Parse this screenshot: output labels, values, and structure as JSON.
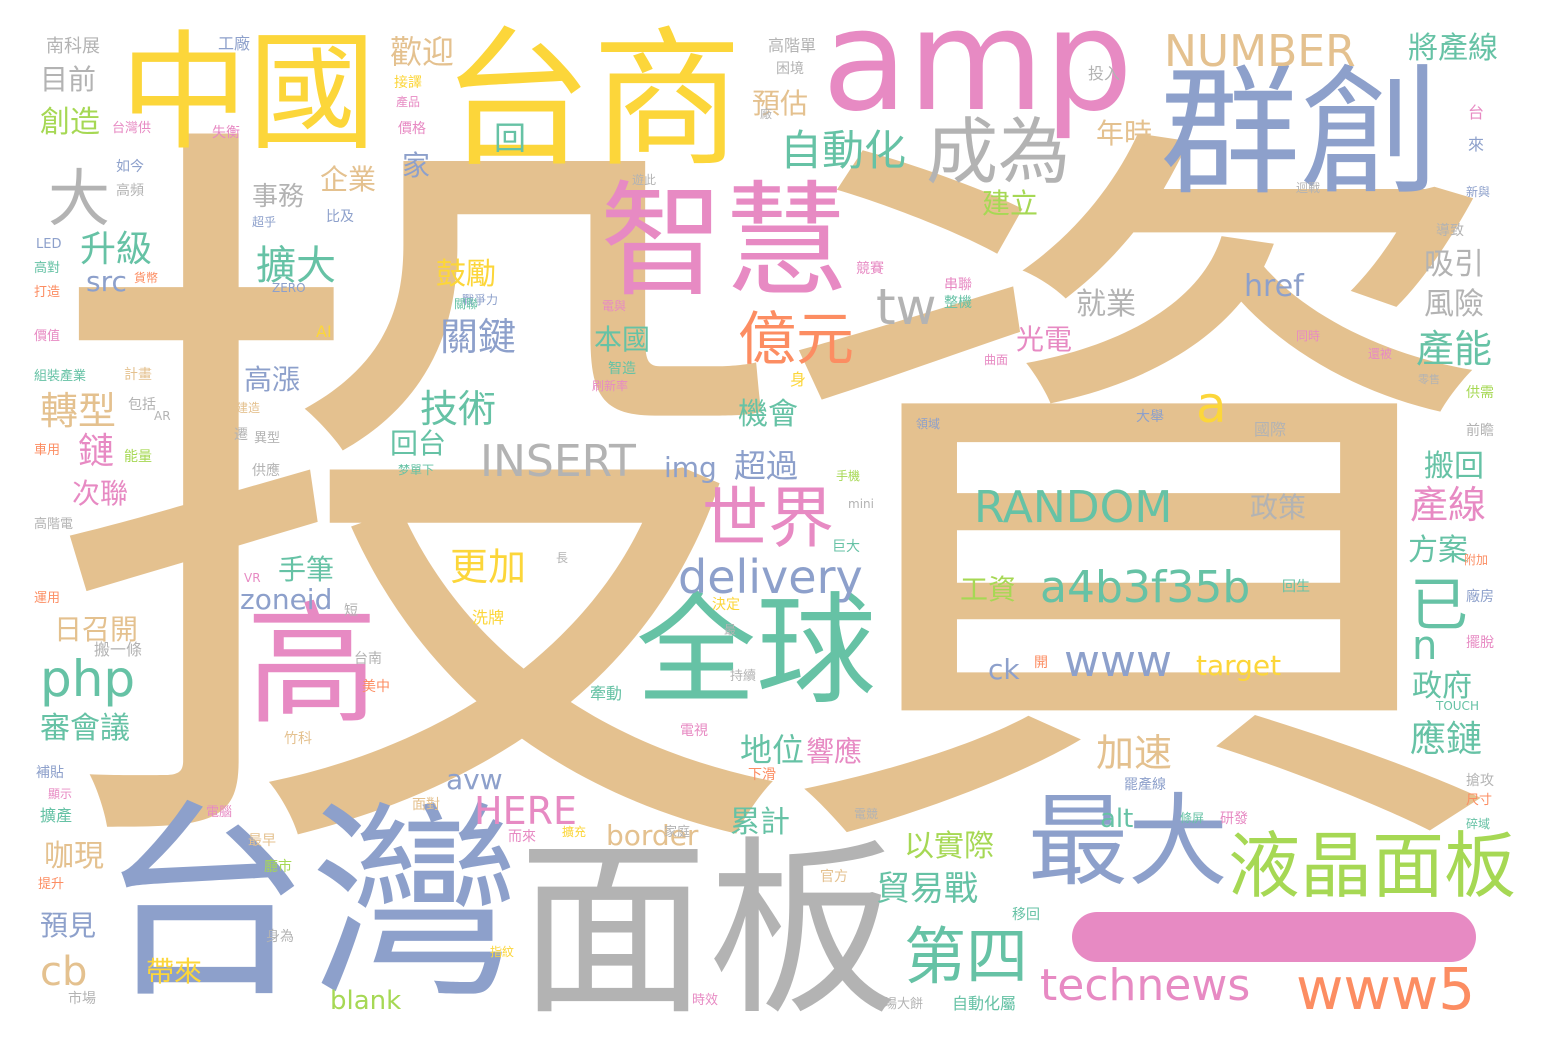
{
  "palette": {
    "tan": "#e4c18f",
    "yellow": "#fcd63a",
    "blue": "#8da0cb",
    "gray": "#b3b3b3",
    "pink": "#e78ac3",
    "green": "#66c2a5",
    "lime": "#a6d854",
    "orange": "#fc8d62"
  },
  "main": {
    "word": "投資",
    "dash_word": "一"
  },
  "large_words": [
    {
      "text": "台商",
      "color": "yellow"
    },
    {
      "text": "中國",
      "color": "yellow"
    },
    {
      "text": "amp",
      "color": "pink"
    },
    {
      "text": "群創",
      "color": "blue"
    },
    {
      "text": "高",
      "color": "pink"
    },
    {
      "text": "台灣",
      "color": "blue"
    },
    {
      "text": "面板",
      "color": "gray"
    },
    {
      "text": "智慧",
      "color": "pink"
    },
    {
      "text": "全球",
      "color": "green"
    },
    {
      "text": "最大",
      "color": "blue"
    },
    {
      "text": "液晶面板",
      "color": "lime"
    }
  ],
  "medium_words": [
    {
      "text": "成為",
      "color": "gray"
    },
    {
      "text": "NUMBER",
      "color": "tan"
    },
    {
      "text": "自動化",
      "color": "green"
    },
    {
      "text": "億元",
      "color": "orange"
    },
    {
      "text": "世界",
      "color": "pink"
    },
    {
      "text": "delivery",
      "color": "blue"
    },
    {
      "text": "RANDOM",
      "color": "green"
    },
    {
      "text": "a4b3f35b",
      "color": "green"
    },
    {
      "text": "www5",
      "color": "orange"
    },
    {
      "text": "technews",
      "color": "pink"
    },
    {
      "text": "第四",
      "color": "green"
    },
    {
      "text": "www",
      "color": "blue"
    },
    {
      "text": "php",
      "color": "green"
    },
    {
      "text": "INSERT",
      "color": "gray"
    },
    {
      "text": "tw",
      "color": "gray"
    },
    {
      "text": "大",
      "color": "gray"
    },
    {
      "text": "a",
      "color": "yellow"
    },
    {
      "text": "已",
      "color": "green"
    },
    {
      "text": "n",
      "color": "green"
    },
    {
      "text": "cb",
      "color": "tan"
    },
    {
      "text": "HERE",
      "color": "pink"
    },
    {
      "text": "貿易戰",
      "color": "green"
    },
    {
      "text": "產能",
      "color": "green"
    },
    {
      "text": "產線",
      "color": "pink"
    },
    {
      "text": "擴大",
      "color": "green"
    },
    {
      "text": "關鍵",
      "color": "blue"
    },
    {
      "text": "技術",
      "color": "green"
    },
    {
      "text": "轉型",
      "color": "tan"
    },
    {
      "text": "升級",
      "color": "green"
    },
    {
      "text": "更加",
      "color": "yellow"
    },
    {
      "text": "加速",
      "color": "tan"
    },
    {
      "text": "應鏈",
      "color": "green"
    },
    {
      "text": "地位",
      "color": "green"
    },
    {
      "text": "歡迎",
      "color": "tan"
    },
    {
      "text": "將產線",
      "color": "green"
    }
  ],
  "small_words": [
    {
      "text": "南科展",
      "color": "gray"
    },
    {
      "text": "工廠",
      "color": "blue"
    },
    {
      "text": "高階單",
      "color": "gray"
    },
    {
      "text": "投入",
      "color": "gray"
    },
    {
      "text": "目前",
      "color": "gray"
    },
    {
      "text": "創造",
      "color": "lime"
    },
    {
      "text": "回",
      "color": "green"
    },
    {
      "text": "預估",
      "color": "tan"
    },
    {
      "text": "年時",
      "color": "tan"
    },
    {
      "text": "企業",
      "color": "tan"
    },
    {
      "text": "家",
      "color": "blue"
    },
    {
      "text": "事務",
      "color": "gray"
    },
    {
      "text": "建立",
      "color": "lime"
    },
    {
      "text": "src",
      "color": "blue"
    },
    {
      "text": "鼓勵",
      "color": "yellow"
    },
    {
      "text": "href",
      "color": "blue"
    },
    {
      "text": "吸引",
      "color": "gray"
    },
    {
      "text": "風險",
      "color": "gray"
    },
    {
      "text": "就業",
      "color": "gray"
    },
    {
      "text": "本國",
      "color": "green"
    },
    {
      "text": "光電",
      "color": "pink"
    },
    {
      "text": "高漲",
      "color": "blue"
    },
    {
      "text": "機會",
      "color": "green"
    },
    {
      "text": "鏈",
      "color": "pink"
    },
    {
      "text": "次聯",
      "color": "pink"
    },
    {
      "text": "回台",
      "color": "green"
    },
    {
      "text": "img",
      "color": "blue"
    },
    {
      "text": "超過",
      "color": "blue"
    },
    {
      "text": "搬回",
      "color": "green"
    },
    {
      "text": "政策",
      "color": "gray"
    },
    {
      "text": "方案",
      "color": "green"
    },
    {
      "text": "手筆",
      "color": "green"
    },
    {
      "text": "zoneid",
      "color": "blue"
    },
    {
      "text": "日召開",
      "color": "tan"
    },
    {
      "text": "工資",
      "color": "lime"
    },
    {
      "text": "ck",
      "color": "blue"
    },
    {
      "text": "target",
      "color": "yellow"
    },
    {
      "text": "政府",
      "color": "green"
    },
    {
      "text": "審會議",
      "color": "green"
    },
    {
      "text": "響應",
      "color": "pink"
    },
    {
      "text": "avw",
      "color": "blue"
    },
    {
      "text": "累計",
      "color": "green"
    },
    {
      "text": "border",
      "color": "tan"
    },
    {
      "text": "alt",
      "color": "green"
    },
    {
      "text": "以實際",
      "color": "lime"
    },
    {
      "text": "咖現",
      "color": "tan"
    },
    {
      "text": "預見",
      "color": "blue"
    },
    {
      "text": "帶來",
      "color": "yellow"
    },
    {
      "text": "blank",
      "color": "lime"
    },
    {
      "text": "如今",
      "color": "blue"
    },
    {
      "text": "高頻",
      "color": "gray"
    },
    {
      "text": "價格",
      "color": "pink"
    },
    {
      "text": "失衡",
      "color": "pink"
    },
    {
      "text": "困境",
      "color": "gray"
    },
    {
      "text": "LED",
      "color": "blue"
    },
    {
      "text": "高對",
      "color": "green"
    },
    {
      "text": "打造",
      "color": "orange"
    },
    {
      "text": "ZERO",
      "color": "blue"
    },
    {
      "text": "AI",
      "color": "yellow"
    },
    {
      "text": "價值",
      "color": "pink"
    },
    {
      "text": "組裝產業",
      "color": "green"
    },
    {
      "text": "計畫",
      "color": "tan"
    },
    {
      "text": "包括",
      "color": "gray"
    },
    {
      "text": "能量",
      "color": "lime"
    },
    {
      "text": "車用",
      "color": "orange"
    },
    {
      "text": "供應",
      "color": "gray"
    },
    {
      "text": "高階電",
      "color": "gray"
    },
    {
      "text": "運用",
      "color": "orange"
    },
    {
      "text": "長",
      "color": "gray"
    },
    {
      "text": "mini",
      "color": "gray"
    },
    {
      "text": "VR",
      "color": "pink"
    },
    {
      "text": "決定",
      "color": "yellow"
    },
    {
      "text": "洗牌",
      "color": "yellow"
    },
    {
      "text": "台南",
      "color": "gray"
    },
    {
      "text": "美中",
      "color": "orange"
    },
    {
      "text": "竹科",
      "color": "tan"
    },
    {
      "text": "牽動",
      "color": "green"
    },
    {
      "text": "持續",
      "color": "gray"
    },
    {
      "text": "電視",
      "color": "pink"
    },
    {
      "text": "下滑",
      "color": "orange"
    },
    {
      "text": "補貼",
      "color": "blue"
    },
    {
      "text": "擴產",
      "color": "green"
    },
    {
      "text": "面對",
      "color": "tan"
    },
    {
      "text": "而來",
      "color": "pink"
    },
    {
      "text": "擴充",
      "color": "yellow"
    },
    {
      "text": "最早",
      "color": "tan"
    },
    {
      "text": "提升",
      "color": "orange"
    },
    {
      "text": "身為",
      "color": "gray"
    },
    {
      "text": "市場",
      "color": "gray"
    },
    {
      "text": "時效",
      "color": "pink"
    },
    {
      "text": "官方",
      "color": "tan"
    },
    {
      "text": "移回",
      "color": "green"
    },
    {
      "text": "自動化屬",
      "color": "green"
    },
    {
      "text": "研發",
      "color": "pink"
    },
    {
      "text": "國際",
      "color": "gray"
    },
    {
      "text": "前瞻",
      "color": "gray"
    },
    {
      "text": "大舉",
      "color": "blue"
    },
    {
      "text": "供需",
      "color": "lime"
    },
    {
      "text": "搶攻",
      "color": "gray"
    },
    {
      "text": "尺寸",
      "color": "orange"
    },
    {
      "text": "導致",
      "color": "gray"
    },
    {
      "text": "競賽",
      "color": "pink"
    },
    {
      "text": "電與",
      "color": "pink"
    },
    {
      "text": "智造",
      "color": "green"
    },
    {
      "text": "曲面",
      "color": "pink"
    },
    {
      "text": "迴戰",
      "color": "gray"
    },
    {
      "text": "廠房",
      "color": "blue"
    },
    {
      "text": "擺脫",
      "color": "pink"
    },
    {
      "text": "回生",
      "color": "green"
    },
    {
      "text": "TOUCH",
      "color": "green"
    },
    {
      "text": "身",
      "color": "yellow"
    },
    {
      "text": "搬一條",
      "color": "gray"
    },
    {
      "text": "戰爭力",
      "color": "blue"
    },
    {
      "text": "同時",
      "color": "pink"
    },
    {
      "text": "刷新率",
      "color": "pink"
    },
    {
      "text": "巨大",
      "color": "green"
    },
    {
      "text": "領域",
      "color": "blue"
    },
    {
      "text": "最",
      "color": "gray"
    },
    {
      "text": "指紋",
      "color": "yellow"
    },
    {
      "text": "附加",
      "color": "orange"
    },
    {
      "text": "比及",
      "color": "blue"
    },
    {
      "text": "異型",
      "color": "gray"
    },
    {
      "text": "手機",
      "color": "lime"
    },
    {
      "text": "還被",
      "color": "pink"
    },
    {
      "text": "零售",
      "color": "gray"
    },
    {
      "text": "顯示",
      "color": "pink"
    },
    {
      "text": "家庭",
      "color": "gray"
    },
    {
      "text": "電腦",
      "color": "pink"
    },
    {
      "text": "條屏",
      "color": "green"
    },
    {
      "text": "場大餅",
      "color": "gray"
    },
    {
      "text": "電競",
      "color": "gray"
    },
    {
      "text": "新與",
      "color": "blue"
    },
    {
      "text": "台",
      "color": "pink"
    },
    {
      "text": "來",
      "color": "blue"
    },
    {
      "text": "遊此",
      "color": "gray"
    },
    {
      "text": "串聯",
      "color": "pink"
    },
    {
      "text": "整機",
      "color": "green"
    },
    {
      "text": "台灣供",
      "color": "pink"
    },
    {
      "text": "產品",
      "color": "pink"
    },
    {
      "text": "接譯",
      "color": "yellow"
    },
    {
      "text": "超乎",
      "color": "blue"
    },
    {
      "text": "貨幣",
      "color": "orange"
    },
    {
      "text": "開",
      "color": "orange"
    },
    {
      "text": "AR",
      "color": "gray"
    },
    {
      "text": "罷產線",
      "color": "blue"
    },
    {
      "text": "遷",
      "color": "gray"
    },
    {
      "text": "梦單下",
      "color": "green"
    },
    {
      "text": "建造",
      "color": "tan"
    },
    {
      "text": "短",
      "color": "gray"
    },
    {
      "text": "關聯",
      "color": "green"
    },
    {
      "text": "廠",
      "color": "gray"
    },
    {
      "text": "碎域",
      "color": "green"
    },
    {
      "text": "廳市",
      "color": "lime"
    }
  ]
}
